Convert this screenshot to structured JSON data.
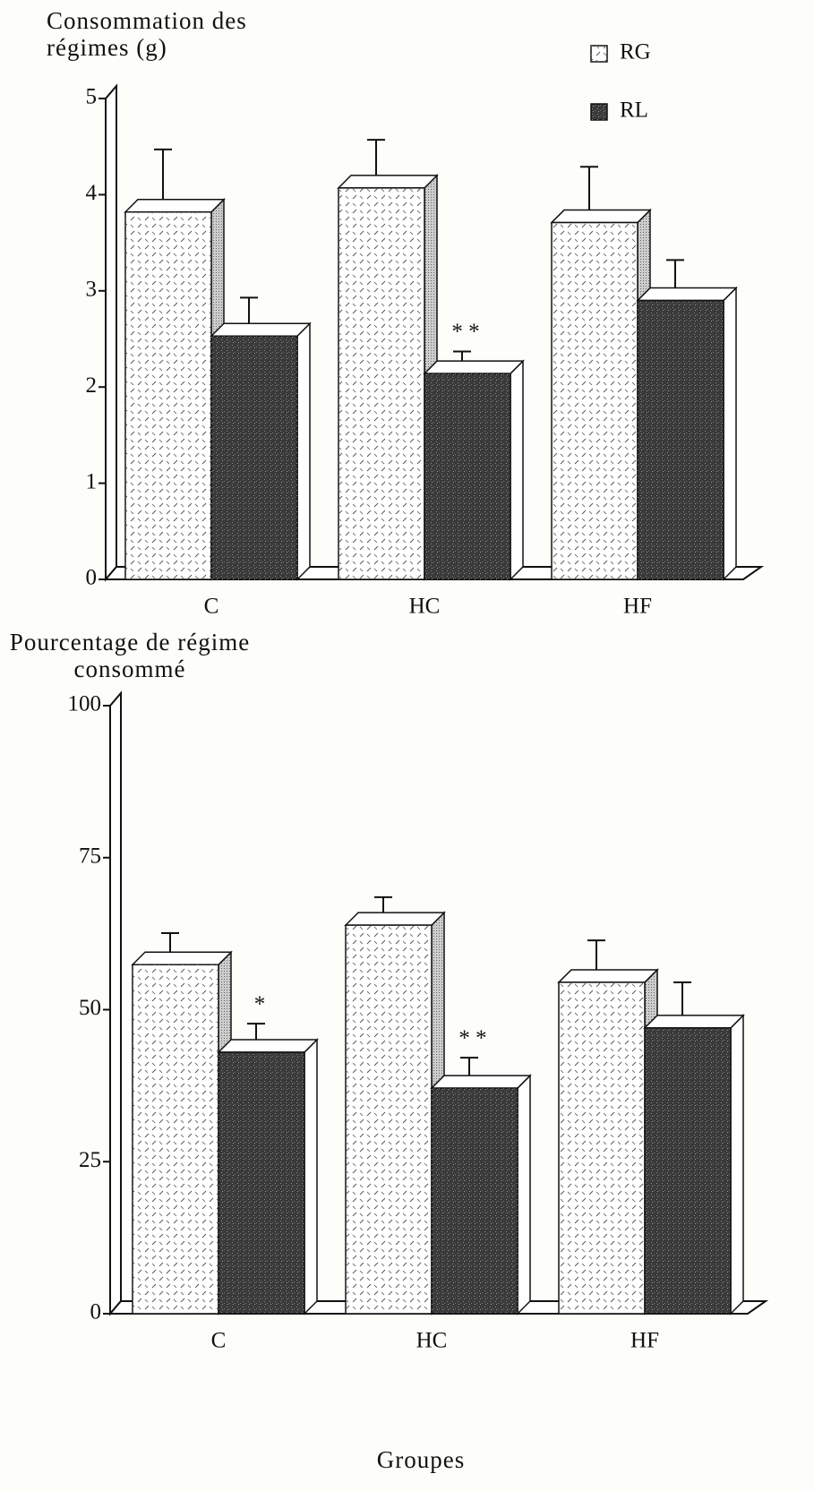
{
  "chart_data": [
    {
      "type": "bar",
      "ylabel": "Consommation des régimes (g)",
      "categories": [
        "C",
        "HC",
        "HF"
      ],
      "series": [
        {
          "name": "RG",
          "color": "#ffffff",
          "values": [
            3.82,
            4.07,
            3.71
          ],
          "errors": [
            0.65,
            0.5,
            0.58
          ]
        },
        {
          "name": "RL",
          "color": "#3a3a3a",
          "values": [
            2.53,
            2.14,
            2.9
          ],
          "errors": [
            0.4,
            0.23,
            0.42
          ],
          "annotations": [
            null,
            "* *",
            null
          ]
        }
      ],
      "ylim": [
        0,
        5
      ],
      "yticks": [
        0,
        1,
        2,
        3,
        4,
        5
      ],
      "legend": "top-right"
    },
    {
      "type": "bar",
      "ylabel": "Pourcentage de régime consommé",
      "xlabel": "Groupes",
      "categories": [
        "C",
        "HC",
        "HF"
      ],
      "series": [
        {
          "color": "#ffffff",
          "values": [
            57.4,
            63.9,
            54.5
          ],
          "errors": [
            5.2,
            4.6,
            6.9
          ]
        },
        {
          "color": "#3a3a3a",
          "values": [
            43,
            37.1,
            47
          ],
          "errors": [
            4.7,
            5,
            7.5
          ],
          "annotations": [
            "*",
            "* *",
            null
          ]
        }
      ],
      "ylim": [
        0,
        100
      ],
      "yticks": [
        0,
        25,
        50,
        75,
        100
      ]
    }
  ]
}
